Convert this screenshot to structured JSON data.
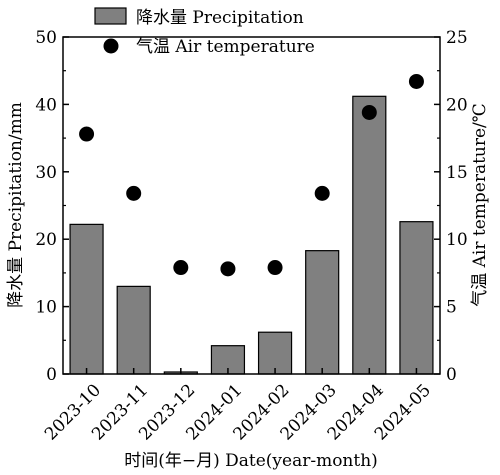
{
  "chart_data": {
    "type": "bar",
    "categories": [
      "2023-10",
      "2023-11",
      "2023-12",
      "2024-01",
      "2024-02",
      "2024-03",
      "2024-04",
      "2024-05"
    ],
    "series": [
      {
        "name": "降水量 Precipitation",
        "kind": "bar",
        "axis": "left",
        "color": "#808080",
        "values": [
          22.2,
          13.0,
          0.3,
          4.2,
          6.2,
          18.3,
          41.2,
          22.6
        ]
      },
      {
        "name": "气温 Air temperature",
        "kind": "scatter",
        "axis": "right",
        "color": "#000000",
        "values": [
          17.8,
          13.4,
          7.9,
          7.8,
          7.9,
          13.4,
          19.4,
          21.7
        ]
      }
    ],
    "xlabel": "时间(年−月) Date(year-month)",
    "ylabel": "降水量 Precipitation/mm",
    "y2label": "气温 Air temperature/℃",
    "ylim": [
      0,
      50
    ],
    "y2lim": [
      0,
      25
    ],
    "yticks": [
      "0",
      "10",
      "20",
      "30",
      "40",
      "50"
    ],
    "y2ticks": [
      "0",
      "5",
      "10",
      "15",
      "20",
      "25"
    ],
    "legend_position": "top-center",
    "grid": false
  }
}
